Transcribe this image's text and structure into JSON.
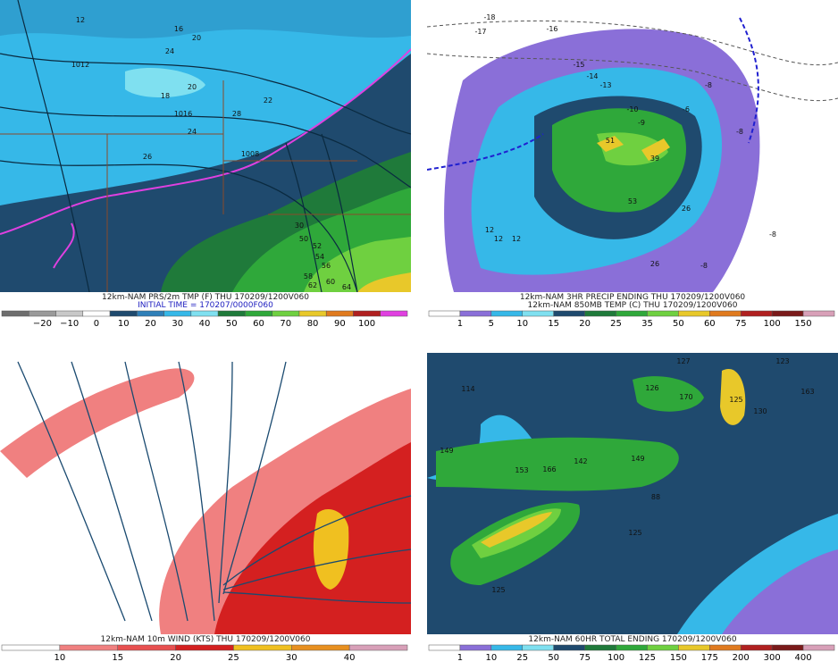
{
  "panels": [
    {
      "caption": [
        "12km-NAM PRS/2m TMP (F) THU 170209/1200V060",
        "INITIAL TIME = 170207/0000F060"
      ],
      "colorbar": {
        "labels": [
          "−20",
          "−10",
          "0",
          "10",
          "20",
          "30",
          "40",
          "50",
          "60",
          "70",
          "80",
          "90",
          "100"
        ],
        "colors": [
          "#6e6e6e",
          "#9a9a9a",
          "#c8c8c8",
          "#ffffff",
          "#1f4a6e",
          "#2f7fb8",
          "#36b8e8",
          "#7fe0f0",
          "#1f7a3a",
          "#2fa83a",
          "#6fd040",
          "#e8c82a",
          "#e07a1e",
          "#b02020",
          "#e040e0"
        ]
      },
      "map_labels": [
        "12",
        "16",
        "20",
        "24",
        "1012",
        "18",
        "20",
        "1016",
        "24",
        "28",
        "1008",
        "26",
        "22",
        "30",
        "50",
        "52",
        "54",
        "56",
        "58",
        "60",
        "62",
        "64"
      ]
    },
    {
      "caption": [
        "12km-NAM 3HR PRECIP ENDING THU 170209/1200V060",
        "12km-NAM 850MB TEMP (C) THU 170209/1200V060"
      ],
      "colorbar": {
        "labels": [
          "1",
          "5",
          "10",
          "15",
          "20",
          "25",
          "35",
          "50",
          "60",
          "75",
          "100",
          "150"
        ],
        "colors": [
          "#ffffff",
          "#8a6fd8",
          "#36b8e8",
          "#7fe0f0",
          "#1f4a6e",
          "#1f7a3a",
          "#2fa83a",
          "#6fd040",
          "#e8c82a",
          "#e07a1e",
          "#b02020",
          "#7a1a1a",
          "#d8a0b8"
        ]
      },
      "map_labels": [
        "-18",
        "-17",
        "-16",
        "-15",
        "-14",
        "-13",
        "-10",
        "-9",
        "-8",
        "-6",
        "-8",
        "-8",
        "-8",
        "51",
        "39",
        "53",
        "26",
        "26",
        "12",
        "12",
        "12"
      ]
    },
    {
      "caption": [
        "12km-NAM 10m WIND (KTS) THU 170209/1200V060"
      ],
      "colorbar": {
        "labels": [
          "10",
          "15",
          "20",
          "25",
          "30",
          "40"
        ],
        "colors": [
          "#ffffff",
          "#f08080",
          "#e85050",
          "#d42020",
          "#f0c020",
          "#e89020",
          "#d8a0b8"
        ]
      },
      "map_labels": []
    },
    {
      "caption": [
        "12km-NAM 60HR TOTAL ENDING 170209/1200V060"
      ],
      "colorbar": {
        "labels": [
          "1",
          "10",
          "25",
          "50",
          "75",
          "100",
          "125",
          "150",
          "175",
          "200",
          "300",
          "400"
        ],
        "colors": [
          "#ffffff",
          "#8a6fd8",
          "#36b8e8",
          "#7fe0f0",
          "#1f4a6e",
          "#1f7a3a",
          "#2fa83a",
          "#6fd040",
          "#e8c82a",
          "#e07a1e",
          "#b02020",
          "#7a1a1a",
          "#d8a0b8"
        ]
      },
      "map_labels": [
        "114",
        "127",
        "123",
        "126",
        "163",
        "170",
        "130",
        "125",
        "149",
        "153",
        "166",
        "142",
        "149",
        "88",
        "125",
        "125"
      ]
    }
  ]
}
